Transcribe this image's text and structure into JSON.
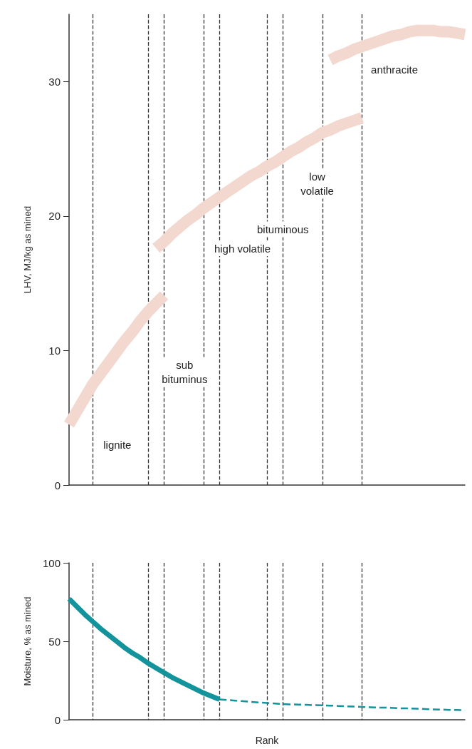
{
  "chart_data": [
    {
      "type": "line",
      "ylabel": "LHV, MJ/kg as mined",
      "categories": [
        null,
        null,
        null,
        null,
        null,
        null,
        null,
        null,
        null,
        null,
        null,
        null,
        null,
        null,
        null,
        null,
        null,
        null,
        null,
        null,
        null,
        null,
        null,
        null,
        null,
        null,
        null,
        null,
        null,
        null,
        null,
        null,
        null,
        null,
        null,
        null,
        null,
        null,
        null,
        null,
        null,
        null,
        null,
        null,
        null,
        null,
        null,
        null,
        null,
        null,
        null
      ],
      "ylim": [
        0,
        35
      ],
      "yticks": [
        0,
        10,
        20,
        30
      ],
      "tick_labels": "y",
      "marker": "none",
      "grid": "x",
      "series": [
        {
          "color": "#f2d8ce",
          "values": [
            4.5,
            5.5,
            6.5,
            7.5,
            8.3,
            9.1,
            9.9,
            10.7,
            11.4,
            12.2,
            12.9,
            13.5,
            14.1,
            null,
            null,
            null,
            null,
            null,
            null,
            null,
            null,
            null,
            null,
            null,
            null,
            null,
            null,
            null,
            null,
            null,
            null,
            null,
            null,
            null,
            null,
            null,
            null,
            null,
            null,
            null,
            null,
            null,
            null,
            null,
            null,
            null,
            null,
            null,
            null,
            null,
            null
          ]
        },
        {
          "color": "#f2d8ce",
          "values": [
            null,
            null,
            null,
            null,
            null,
            null,
            null,
            null,
            null,
            null,
            null,
            17.6,
            18.1,
            18.7,
            19.2,
            19.7,
            20.1,
            20.6,
            21.0,
            21.4,
            21.8,
            22.2,
            22.6,
            23.0,
            23.3,
            23.7,
            24.0,
            24.4,
            24.8,
            25.1,
            25.5,
            25.8,
            26.2,
            26.4,
            26.7,
            26.9,
            27.1,
            27.3,
            null,
            null,
            null,
            null,
            null,
            null,
            null,
            null,
            null,
            null,
            null,
            null,
            null
          ]
        },
        {
          "color": "#f2d8ce",
          "values": [
            null,
            null,
            null,
            null,
            null,
            null,
            null,
            null,
            null,
            null,
            null,
            null,
            null,
            null,
            null,
            null,
            null,
            null,
            null,
            null,
            null,
            null,
            null,
            null,
            null,
            null,
            null,
            null,
            null,
            null,
            null,
            null,
            null,
            31.6,
            31.9,
            32.1,
            32.4,
            32.6,
            32.8,
            33.0,
            33.2,
            33.4,
            33.5,
            33.7,
            33.8,
            33.8,
            33.8,
            33.7,
            33.7,
            33.6,
            33.5
          ]
        }
      ],
      "annotations": [
        "lignite",
        "sub\nbituminus",
        "high volatile",
        "bituminous",
        "low\nvolatile",
        "anthracite"
      ]
    },
    {
      "type": "line",
      "xlabel": "Rank",
      "ylabel": "Moisture, % as mined",
      "categories": [
        null,
        null,
        null,
        null,
        null,
        null,
        null,
        null,
        null,
        null,
        null,
        null,
        null,
        null,
        null,
        null,
        null,
        null,
        null,
        null,
        null,
        null,
        null,
        null,
        null,
        null,
        null,
        null,
        null,
        null,
        null,
        null,
        null,
        null,
        null,
        null,
        null,
        null,
        null,
        null,
        null,
        null,
        null,
        null,
        null,
        null,
        null,
        null,
        null,
        null,
        null
      ],
      "ylim": [
        0,
        100
      ],
      "yticks": [
        0,
        50,
        100
      ],
      "tick_labels": "y",
      "marker": "none",
      "grid": "x",
      "series": [
        {
          "color": "#13939b",
          "line_style": "solid",
          "values": [
            77,
            72,
            67,
            62.5,
            58,
            54,
            50,
            46,
            42.5,
            39.5,
            36,
            33,
            30,
            27,
            24.5,
            22,
            19.5,
            17,
            15,
            13,
            null,
            null,
            null,
            null,
            null,
            null,
            null,
            null,
            null,
            null,
            null,
            null,
            null,
            null,
            null,
            null,
            null,
            null,
            null,
            null,
            null,
            null,
            null,
            null,
            null,
            null,
            null,
            null,
            null,
            null,
            null
          ]
        },
        {
          "color": "#13939b",
          "line_style": "dashed",
          "values": [
            null,
            null,
            null,
            null,
            null,
            null,
            null,
            null,
            null,
            null,
            null,
            null,
            null,
            null,
            null,
            null,
            null,
            null,
            null,
            13,
            12.6,
            12.2,
            11.8,
            11.4,
            11,
            10.7,
            10.3,
            10,
            9.8,
            9.7,
            9.5,
            9.3,
            9.2,
            9,
            8.8,
            8.6,
            8.4,
            8.2,
            8,
            7.8,
            7.7,
            7.5,
            7.3,
            7.2,
            7,
            6.8,
            6.6,
            6.5,
            6.3,
            6.2,
            6
          ]
        }
      ]
    }
  ]
}
